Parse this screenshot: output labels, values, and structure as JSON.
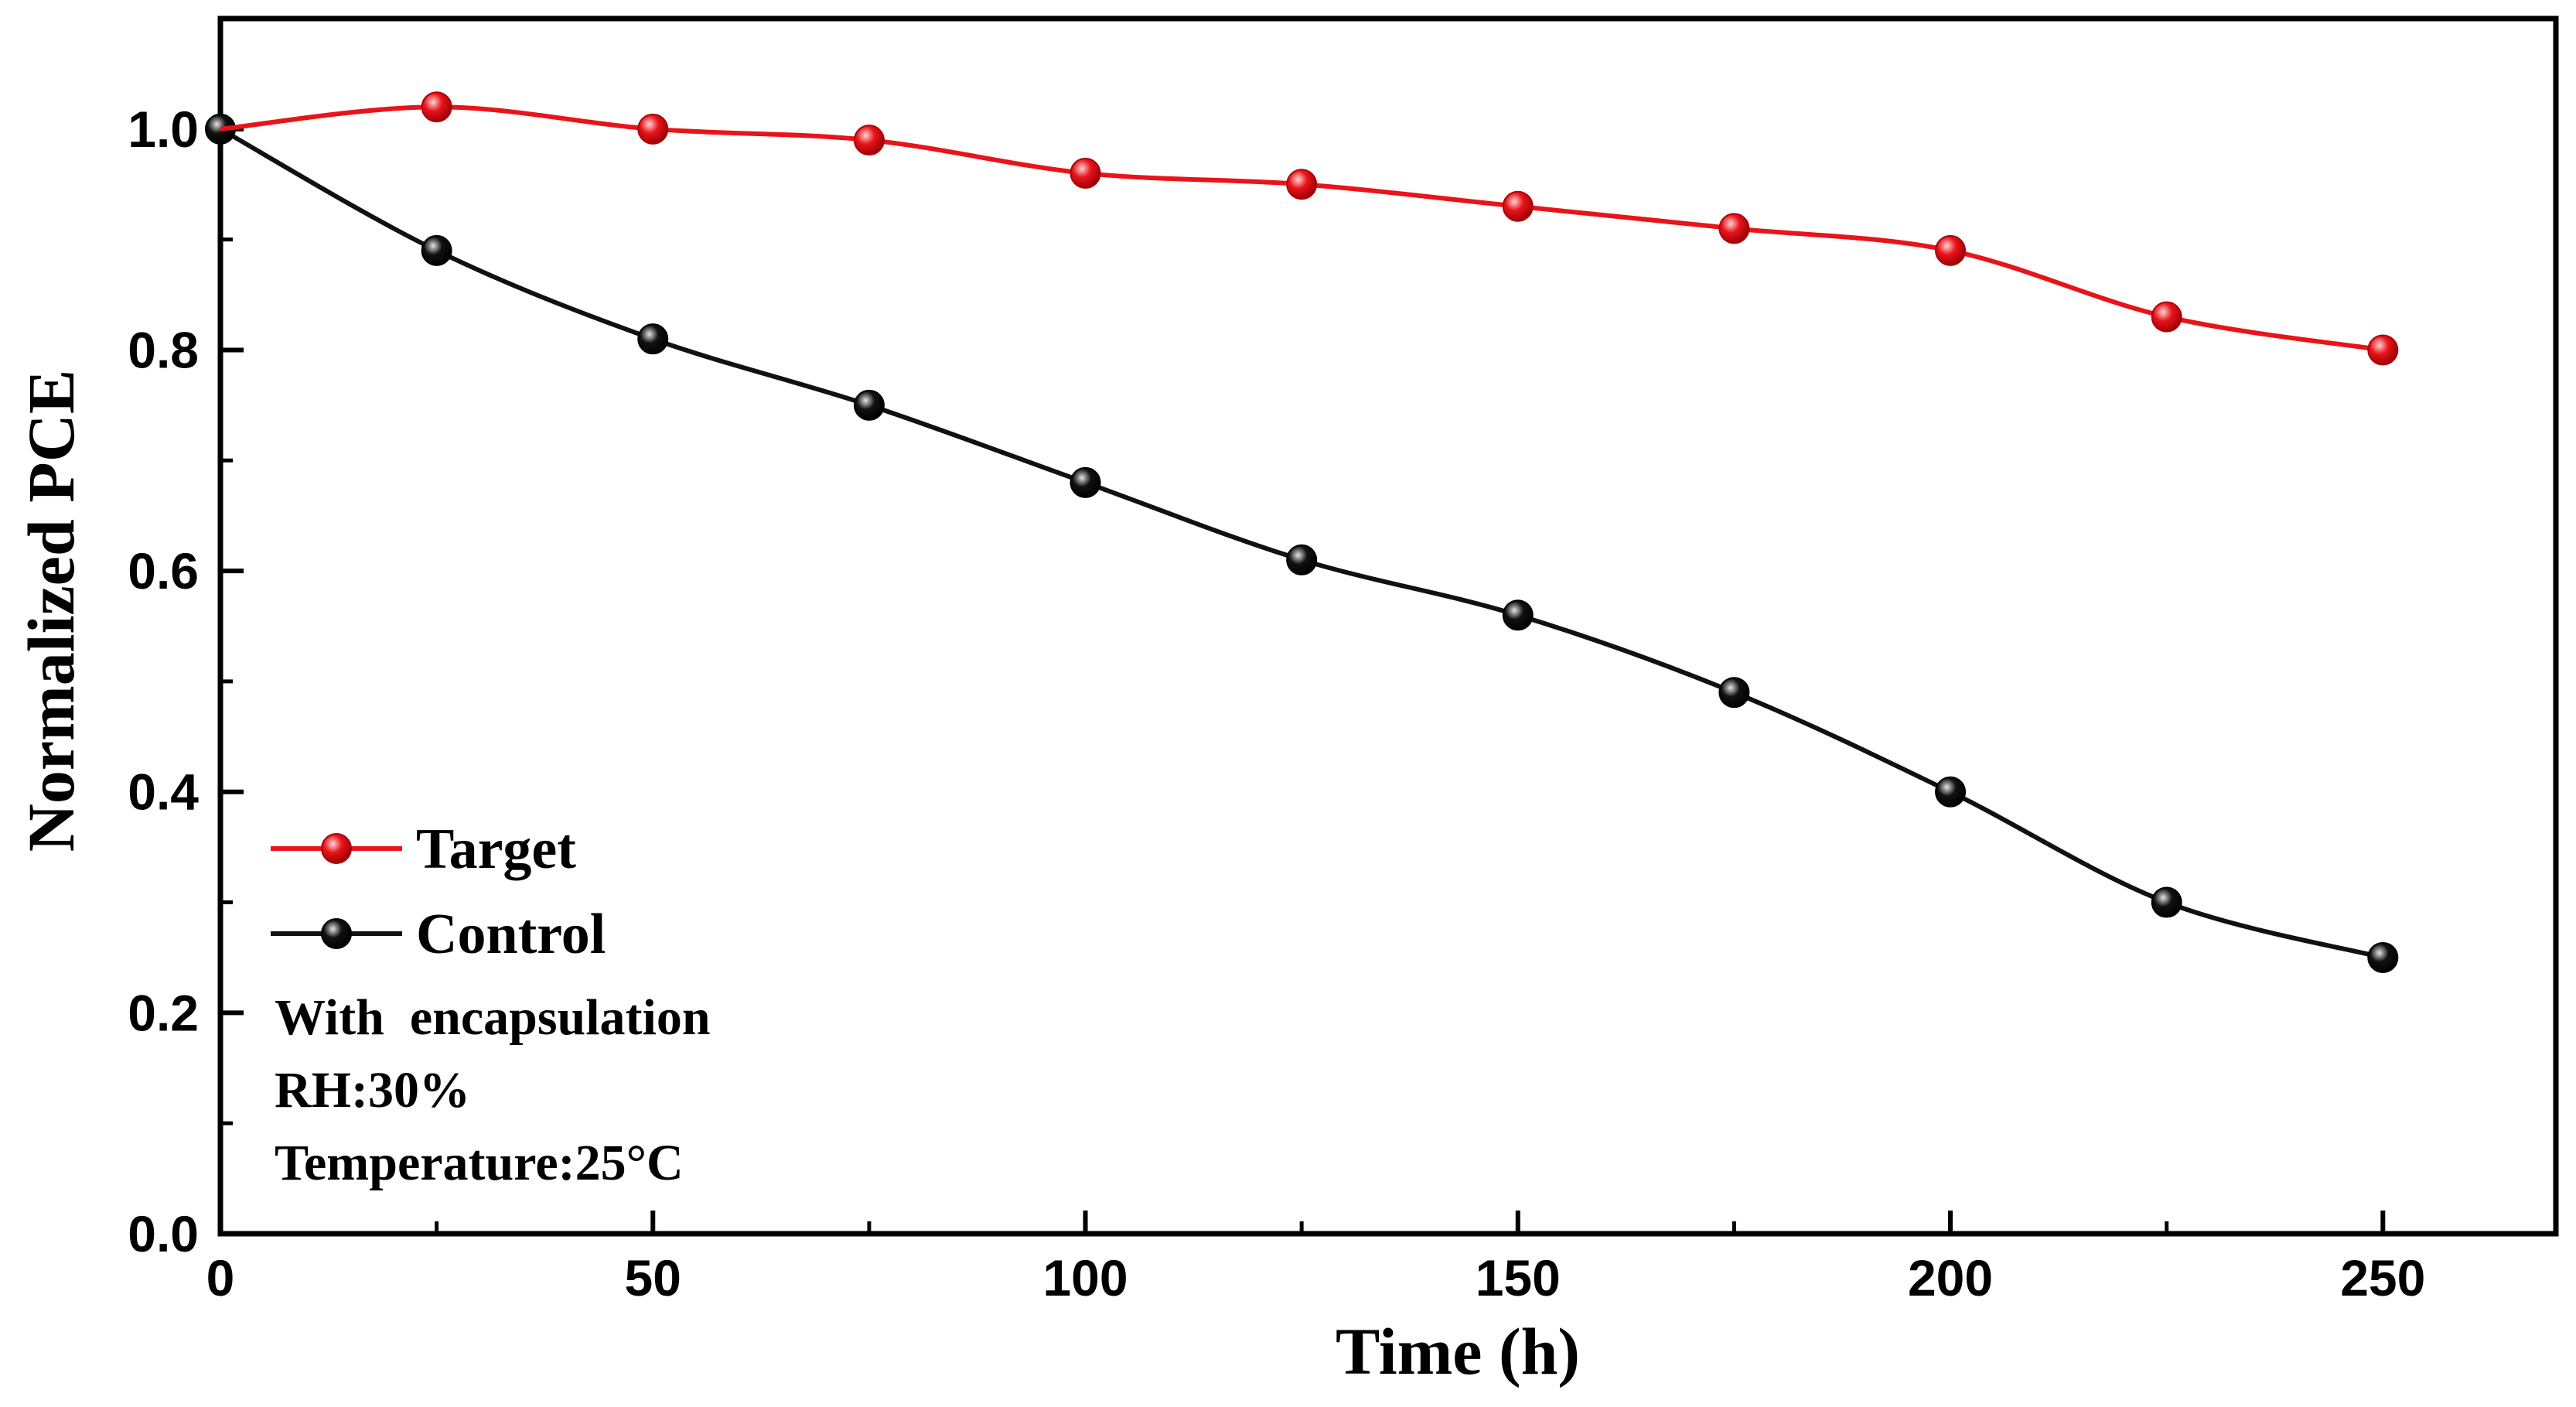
{
  "chart_data": {
    "type": "line",
    "title": "",
    "xlabel": "Time (h)",
    "ylabel": "Normalized PCE",
    "xlim": [
      0,
      270
    ],
    "ylim": [
      0,
      1.1
    ],
    "x_ticks": [
      0,
      50,
      100,
      150,
      200,
      250
    ],
    "x_tick_labels": [
      "0",
      "50",
      "100",
      "150",
      "200",
      "250"
    ],
    "y_ticks": [
      0.0,
      0.2,
      0.4,
      0.6,
      0.8,
      1.0
    ],
    "y_tick_labels": [
      "0.0",
      "0.2",
      "0.4",
      "0.6",
      "0.8",
      "1.0"
    ],
    "x": [
      0,
      25,
      50,
      75,
      100,
      125,
      150,
      175,
      200,
      225,
      250
    ],
    "series": [
      {
        "name": "Target",
        "color": "#e8141a",
        "values": [
          1.0,
          1.02,
          1.0,
          0.99,
          0.96,
          0.95,
          0.93,
          0.91,
          0.89,
          0.83,
          0.8
        ]
      },
      {
        "name": "Control",
        "color": "#111111",
        "values": [
          1.0,
          0.89,
          0.81,
          0.75,
          0.68,
          0.61,
          0.56,
          0.49,
          0.4,
          0.3,
          0.25
        ]
      }
    ],
    "legend": {
      "position": "bottom-left",
      "entries": [
        "Target",
        "Control"
      ]
    },
    "annotations": [
      "With  encapsulation",
      "RH:30%",
      "Temperature:25°C"
    ],
    "grid": false
  }
}
